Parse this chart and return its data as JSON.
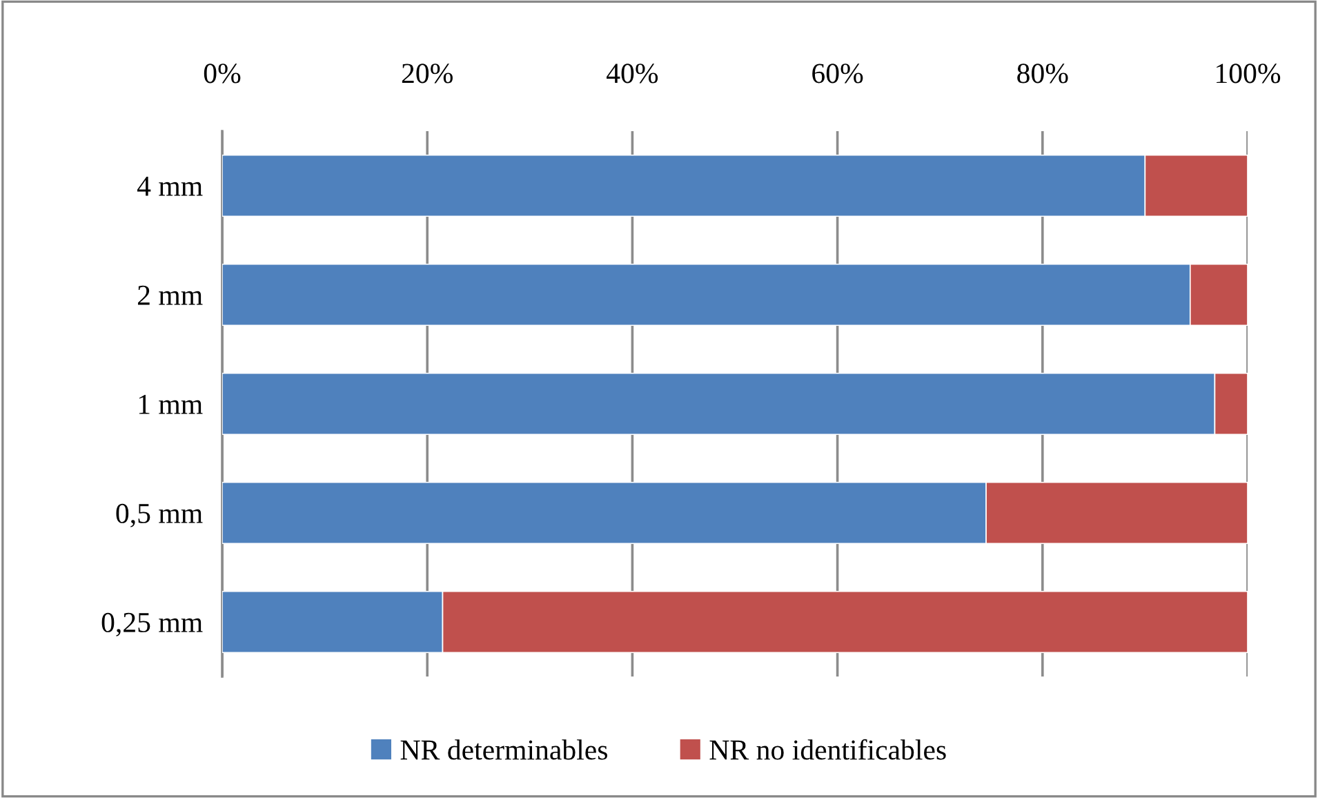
{
  "chart_data": {
    "type": "bar",
    "orientation": "horizontal",
    "stacked": true,
    "categories": [
      "4 mm",
      "2 mm",
      "1 mm",
      "0,5 mm",
      "0,25 mm"
    ],
    "series": [
      {
        "name": "NR determinables",
        "color": "#4f81bd",
        "values": [
          90.0,
          94.4,
          96.8,
          74.5,
          21.5
        ]
      },
      {
        "name": "NR no identificables",
        "color": "#c0504d",
        "values": [
          10.0,
          5.6,
          3.2,
          25.5,
          78.5
        ]
      }
    ],
    "xlim": [
      0,
      100
    ],
    "xticks": [
      {
        "value": 0,
        "label": "0%"
      },
      {
        "value": 20,
        "label": "20%"
      },
      {
        "value": 40,
        "label": "40%"
      },
      {
        "value": 60,
        "label": "60%"
      },
      {
        "value": 80,
        "label": "80%"
      },
      {
        "value": 100,
        "label": "100%"
      }
    ],
    "grid": "x",
    "legend": "bottom"
  }
}
